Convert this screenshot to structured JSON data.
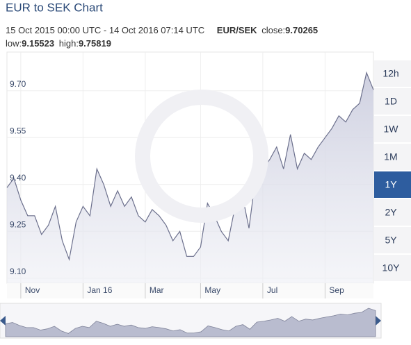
{
  "chart_data": {
    "type": "area",
    "title": "EUR to SEK Chart",
    "date_range": "15 Oct 2015 00:00 UTC - 14 Oct 2016 07:14 UTC",
    "pair": "EUR/SEK",
    "close_label": "close:",
    "close": 9.70265,
    "low_label": "low:",
    "low": 9.15523,
    "high_label": "high:",
    "high": 9.75819,
    "categories": [
      null,
      null,
      "Nov",
      null,
      null,
      null,
      null,
      null,
      null,
      null,
      null,
      "Jan 16",
      null,
      null,
      null,
      null,
      null,
      null,
      null,
      null,
      "Mar",
      null,
      null,
      null,
      null,
      null,
      null,
      null,
      "May",
      null,
      null,
      null,
      null,
      null,
      null,
      null,
      null,
      "Jul",
      null,
      null,
      null,
      null,
      null,
      null,
      null,
      null,
      "Sep",
      null,
      null,
      null,
      null,
      null,
      null,
      null
    ],
    "values": [
      9.39,
      9.42,
      9.35,
      9.3,
      9.3,
      9.24,
      9.27,
      9.33,
      9.22,
      9.16,
      9.28,
      9.33,
      9.3,
      9.45,
      9.4,
      9.33,
      9.38,
      9.33,
      9.36,
      9.3,
      9.28,
      9.32,
      9.3,
      9.27,
      9.22,
      9.25,
      9.17,
      9.17,
      9.2,
      9.34,
      9.3,
      9.25,
      9.22,
      9.33,
      9.37,
      9.26,
      9.43,
      9.45,
      9.48,
      9.52,
      9.45,
      9.56,
      9.45,
      9.5,
      9.48,
      9.52,
      9.55,
      9.58,
      9.62,
      9.6,
      9.64,
      9.66,
      9.758,
      9.703
    ],
    "color": "#6b6f8c",
    "ylim": [
      9.084,
      9.824
    ],
    "yticks": [
      {
        "value": 9.1,
        "label": "9.10"
      },
      9.25,
      {
        "value": 9.4,
        "label": "9.40"
      },
      9.55,
      {
        "value": 9.7,
        "label": "9.70"
      }
    ],
    "grid": true,
    "range_buttons": [
      "12h",
      "1D",
      "1W",
      "1M",
      "1Y",
      "2Y",
      "5Y",
      "10Y"
    ],
    "selected_range": "1Y"
  }
}
